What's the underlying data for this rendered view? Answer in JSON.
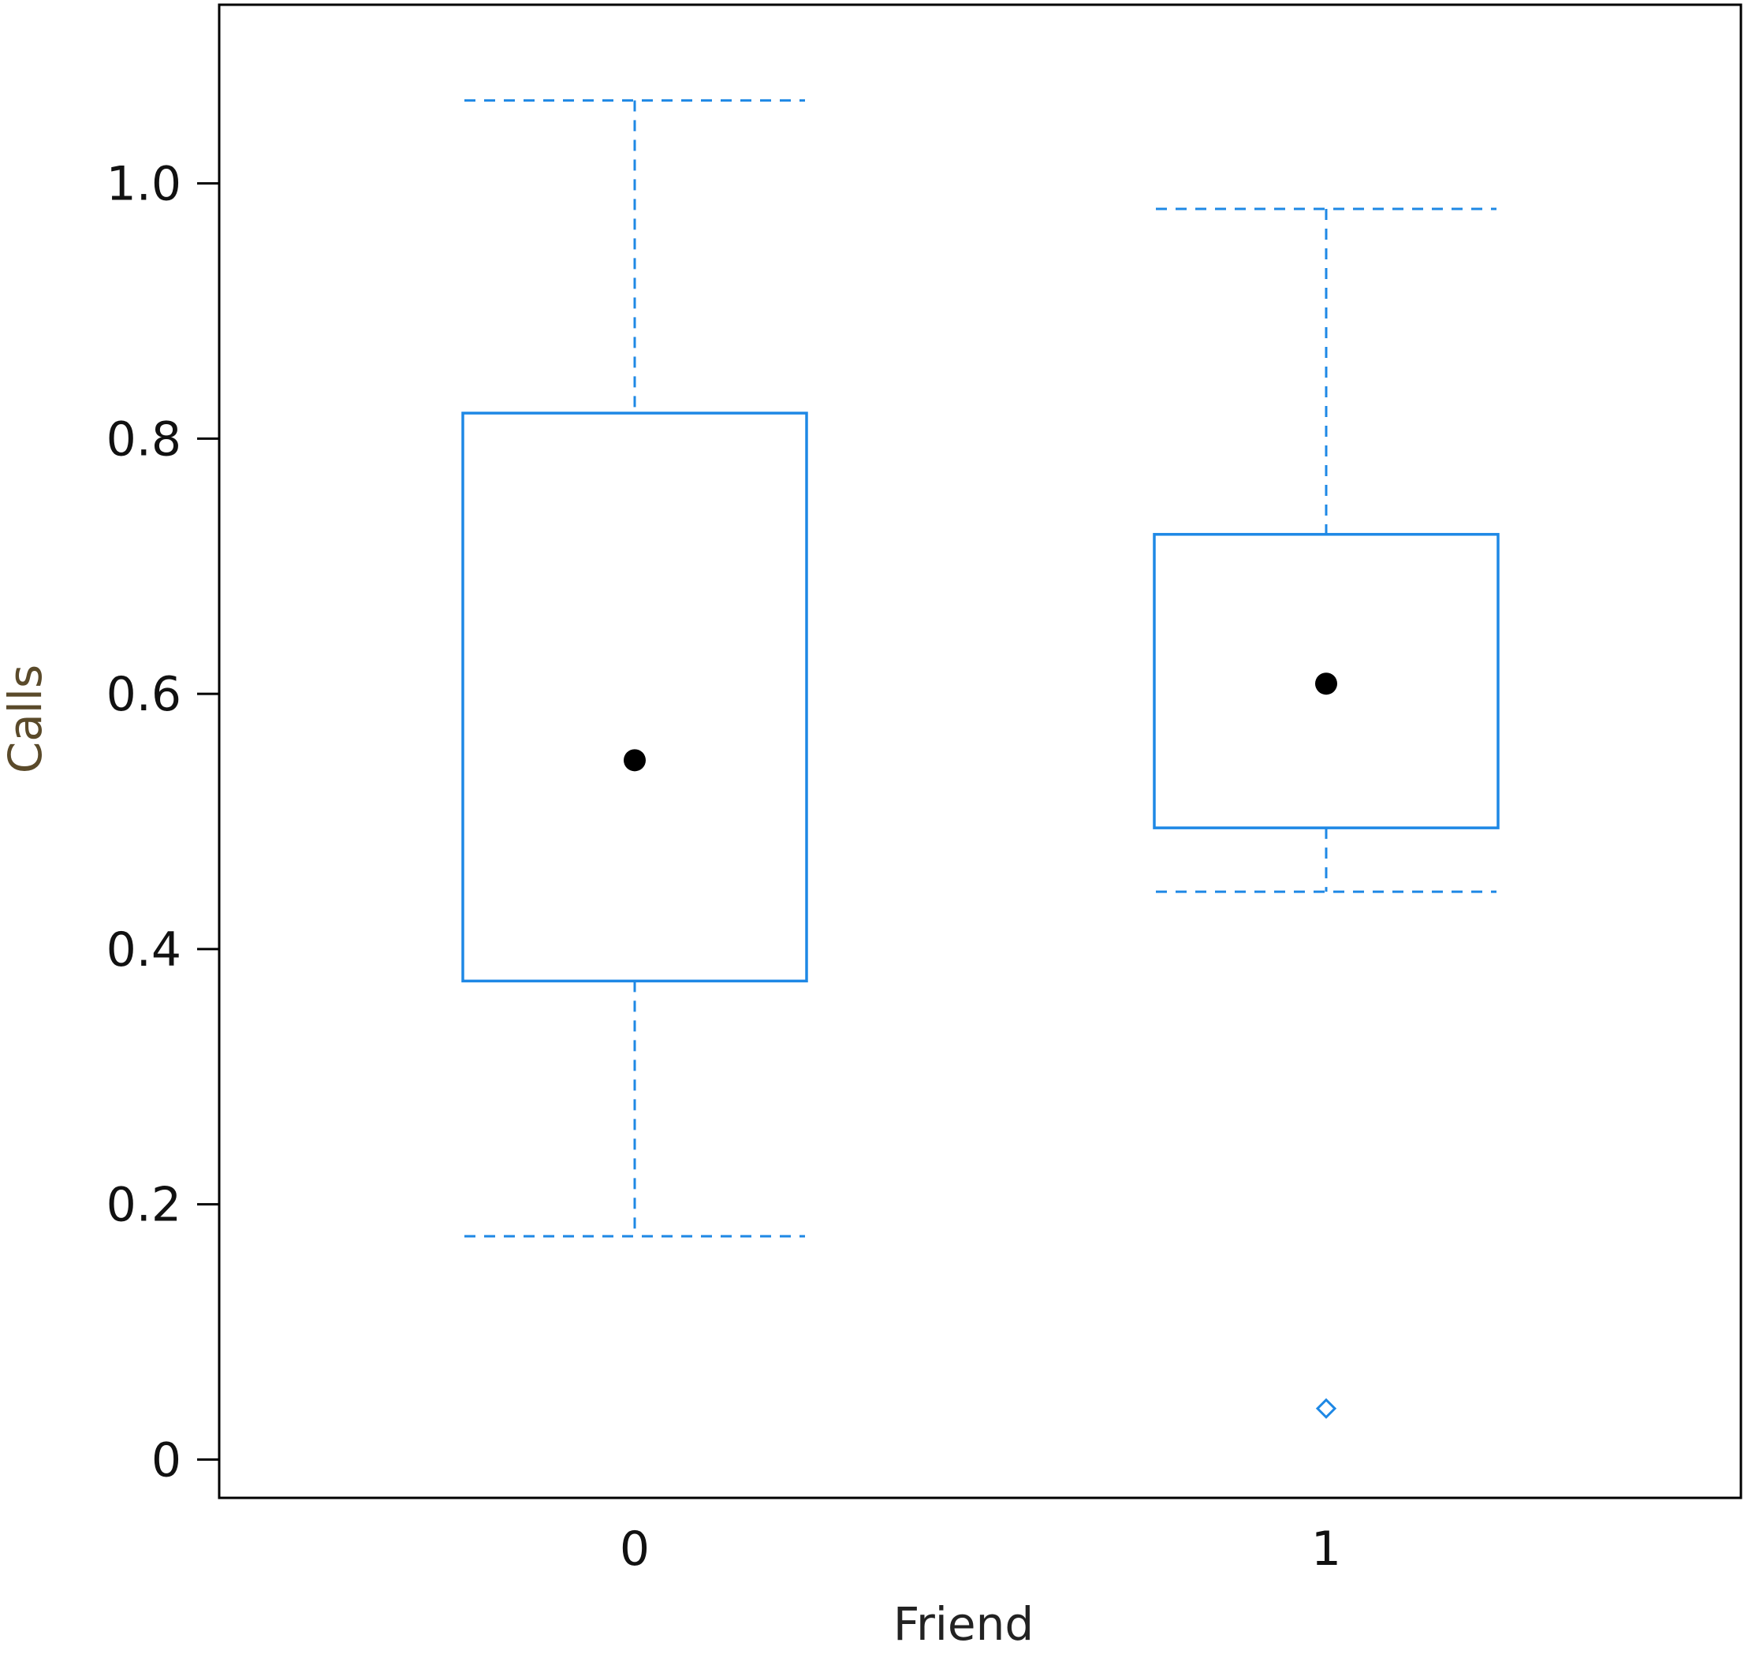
{
  "chart_data": {
    "type": "box",
    "title": "",
    "xlabel": "Friend",
    "ylabel": "Calls",
    "categories": [
      "0",
      "1"
    ],
    "y_ticks": [
      {
        "value": 0,
        "label": "0"
      },
      {
        "value": 0.2,
        "label": "0.2"
      },
      {
        "value": 0.4,
        "label": "0.4"
      },
      {
        "value": 0.6,
        "label": "0.6"
      },
      {
        "value": 0.8,
        "label": "0.8"
      },
      {
        "value": 1.0,
        "label": "1.0"
      }
    ],
    "ylim": [
      -0.03,
      1.14
    ],
    "grid": false,
    "boxes": [
      {
        "category": "0",
        "whisker_low": 0.175,
        "q1": 0.375,
        "median": 0.548,
        "q3": 0.82,
        "whisker_high": 1.065,
        "outliers": []
      },
      {
        "category": "1",
        "whisker_low": 0.445,
        "q1": 0.495,
        "median": 0.608,
        "q3": 0.725,
        "whisker_high": 0.98,
        "outliers": [
          0.04
        ]
      }
    ],
    "colors": {
      "box": "#1e88e5",
      "median_marker": "#000000",
      "frame": "#000000",
      "text": "#111111",
      "ylabel_color": "#5a4a2a",
      "xlabel_color": "#222222"
    }
  }
}
